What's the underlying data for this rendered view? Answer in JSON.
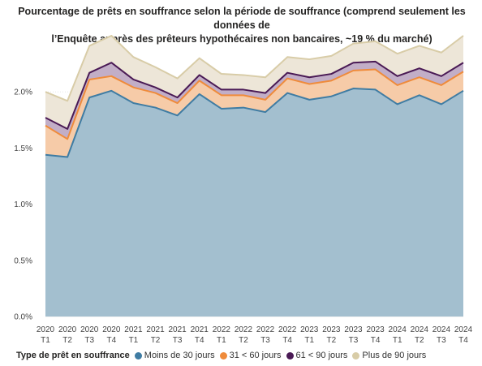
{
  "chart_data": {
    "type": "area",
    "stacked": true,
    "title_line1": "Pourcentage de prêts en souffrance selon la période de souffrance (comprend seulement les données de",
    "title_line2": "l’Enquête auprès des prêteurs hypothécaires non bancaires, ~19 % du marché)",
    "ylim": [
      0,
      2.5
    ],
    "yticks": [
      "0.0%",
      "0.5%",
      "1.0%",
      "1.5%",
      "2.0%"
    ],
    "yticks_values": [
      0,
      0.5,
      1.0,
      1.5,
      2.0
    ],
    "grid": true,
    "categories": [
      [
        "2020",
        "T1"
      ],
      [
        "2020",
        "T2"
      ],
      [
        "2020",
        "T3"
      ],
      [
        "2020",
        "T4"
      ],
      [
        "2021",
        "T1"
      ],
      [
        "2021",
        "T2"
      ],
      [
        "2021",
        "T3"
      ],
      [
        "2021",
        "T4"
      ],
      [
        "2022",
        "T1"
      ],
      [
        "2022",
        "T2"
      ],
      [
        "2022",
        "T3"
      ],
      [
        "2022",
        "T4"
      ],
      [
        "2023",
        "T1"
      ],
      [
        "2023",
        "T2"
      ],
      [
        "2023",
        "T3"
      ],
      [
        "2023",
        "T4"
      ],
      [
        "2024",
        "T1"
      ],
      [
        "2024",
        "T2"
      ],
      [
        "2024",
        "T3"
      ],
      [
        "2024",
        "T4"
      ]
    ],
    "legend_title": "Type de prêt en souffrance",
    "legend_position": "bottom-left",
    "series": [
      {
        "name": "Moins de 30 jours",
        "color": "#a3bfcf",
        "line_color": "#3f7ca3",
        "values": [
          1.44,
          1.42,
          1.95,
          2.01,
          1.9,
          1.86,
          1.79,
          1.98,
          1.85,
          1.86,
          1.82,
          1.99,
          1.93,
          1.96,
          2.03,
          2.02,
          1.89,
          1.97,
          1.89,
          2.01
        ]
      },
      {
        "name": "31 < 60 jours",
        "color": "#f6cba8",
        "line_color": "#ef8b3b",
        "values": [
          0.26,
          0.16,
          0.16,
          0.13,
          0.14,
          0.13,
          0.11,
          0.12,
          0.12,
          0.11,
          0.11,
          0.13,
          0.14,
          0.14,
          0.16,
          0.18,
          0.17,
          0.16,
          0.17,
          0.17
        ]
      },
      {
        "name": "61 < 90 jours",
        "color": "#c2aec7",
        "line_color": "#4a1a55",
        "values": [
          0.07,
          0.09,
          0.06,
          0.12,
          0.07,
          0.05,
          0.05,
          0.05,
          0.05,
          0.05,
          0.06,
          0.05,
          0.06,
          0.06,
          0.07,
          0.07,
          0.08,
          0.08,
          0.08,
          0.08
        ]
      },
      {
        "name": "Plus de 90 jours",
        "color": "#ede6d8",
        "line_color": "#d8cca7",
        "values": [
          0.23,
          0.25,
          0.24,
          0.24,
          0.2,
          0.18,
          0.17,
          0.15,
          0.14,
          0.13,
          0.14,
          0.14,
          0.16,
          0.16,
          0.17,
          0.18,
          0.2,
          0.2,
          0.21,
          0.24
        ]
      }
    ]
  }
}
